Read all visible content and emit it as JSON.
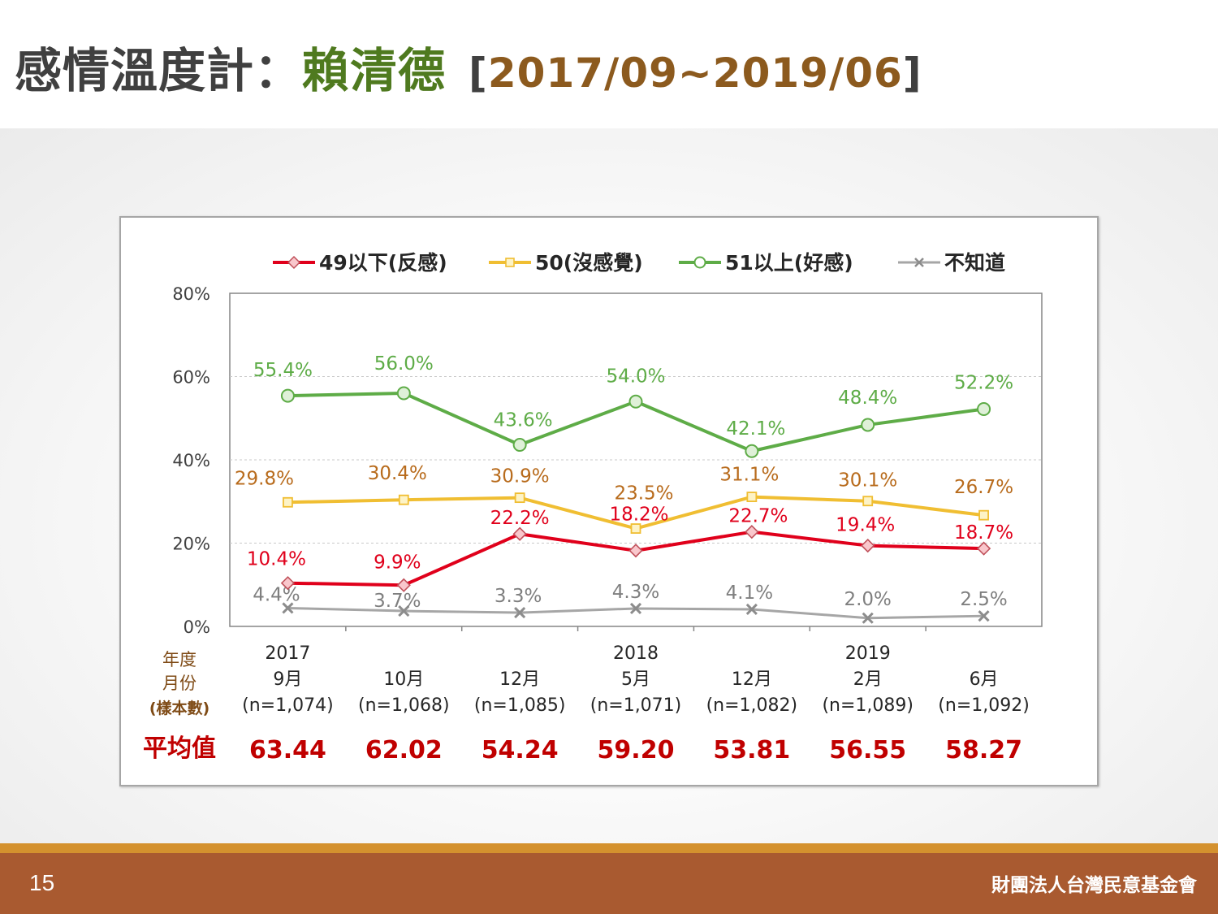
{
  "header": {
    "title_prefix": "感情溫度計：",
    "title_name": "賴清德",
    "range_open": "[",
    "range_text": "2017/09~2019/06",
    "range_close": "]"
  },
  "footer": {
    "page_number": "15",
    "organization": "財團法人台灣民意基金會"
  },
  "colors": {
    "negative": "#e0001b",
    "neutral": "#f0be32",
    "positive": "#5eac47",
    "unknown": "#a6a6a6",
    "neutral_label": "#b86b1c",
    "axis_side_label": "#7f4b16",
    "average_label": "#c00000"
  },
  "chart_data": {
    "type": "line",
    "ylim": [
      0,
      80
    ],
    "yticks": [
      "80%",
      "60%",
      "40%",
      "20%",
      "0%"
    ],
    "ytick_values": [
      80,
      60,
      40,
      20,
      0
    ],
    "grid": true,
    "legend_position": "top",
    "side_labels": [
      "年度",
      "月份",
      "(樣本數)"
    ],
    "average_label": "平均值",
    "categories": [
      {
        "year": "2017",
        "month": "9月",
        "n": "(n=1,074)",
        "average": "63.44"
      },
      {
        "year": "",
        "month": "10月",
        "n": "(n=1,068)",
        "average": "62.02"
      },
      {
        "year": "",
        "month": "12月",
        "n": "(n=1,085)",
        "average": "54.24"
      },
      {
        "year": "2018",
        "month": "5月",
        "n": "(n=1,071)",
        "average": "59.20"
      },
      {
        "year": "",
        "month": "12月",
        "n": "(n=1,082)",
        "average": "53.81"
      },
      {
        "year": "2019",
        "month": "2月",
        "n": "(n=1,089)",
        "average": "56.55"
      },
      {
        "year": "",
        "month": "6月",
        "n": "(n=1,092)",
        "average": "58.27"
      }
    ],
    "series": [
      {
        "name": "49以下(反感)",
        "key": "negative",
        "marker": "diamond",
        "values": [
          10.4,
          9.9,
          22.2,
          18.2,
          22.7,
          19.4,
          18.7
        ],
        "labels": [
          "10.4%",
          "9.9%",
          "22.2%",
          "18.2%",
          "22.7%",
          "19.4%",
          "18.7%"
        ]
      },
      {
        "name": "50(沒感覺)",
        "key": "neutral",
        "marker": "square",
        "values": [
          29.8,
          30.4,
          30.9,
          23.5,
          31.1,
          30.1,
          26.7
        ],
        "labels": [
          "29.8%",
          "30.4%",
          "30.9%",
          "23.5%",
          "31.1%",
          "30.1%",
          "26.7%"
        ]
      },
      {
        "name": "51以上(好感)",
        "key": "positive",
        "marker": "circle",
        "values": [
          55.4,
          56.0,
          43.6,
          54.0,
          42.1,
          48.4,
          52.2
        ],
        "labels": [
          "55.4%",
          "56.0%",
          "43.6%",
          "54.0%",
          "42.1%",
          "48.4%",
          "52.2%"
        ]
      },
      {
        "name": "不知道",
        "key": "unknown",
        "marker": "x",
        "values": [
          4.4,
          3.7,
          3.3,
          4.3,
          4.1,
          2.0,
          2.5
        ],
        "labels": [
          "4.4%",
          "3.7%",
          "3.3%",
          "4.3%",
          "4.1%",
          "2.0%",
          "2.5%"
        ]
      }
    ]
  }
}
